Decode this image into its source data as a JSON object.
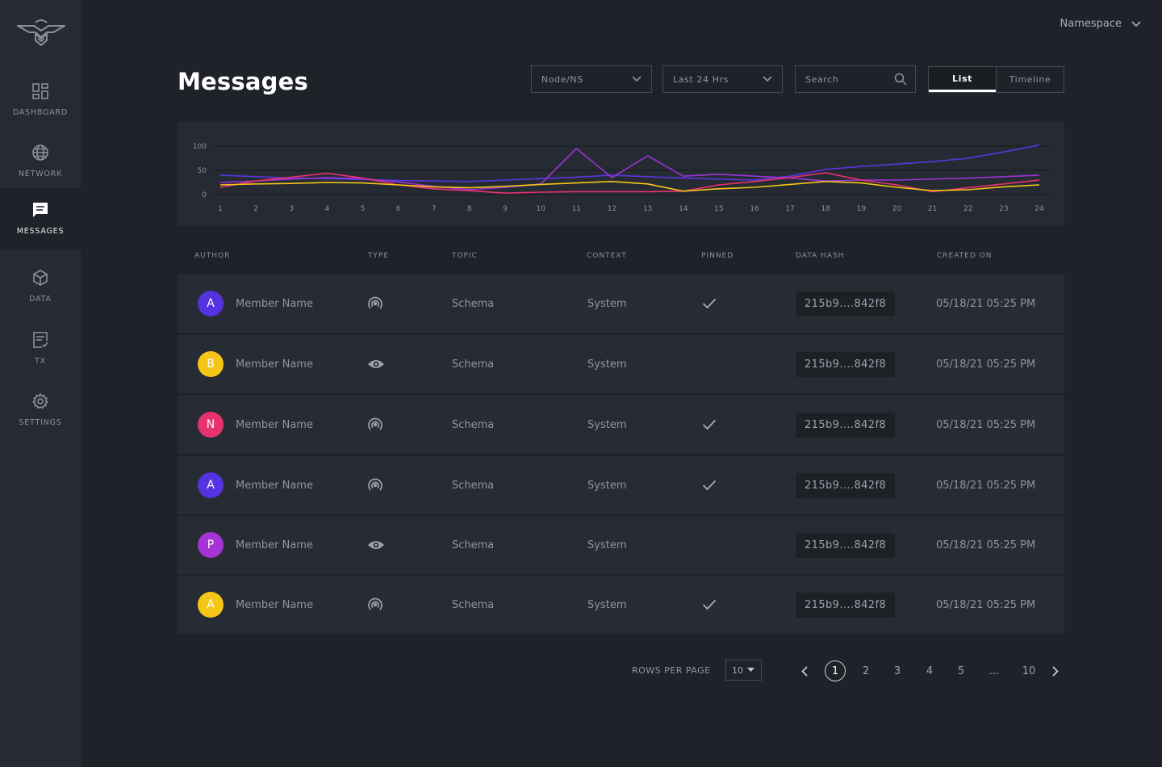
{
  "sidebar": {
    "items": [
      {
        "label": "DASHBOARD",
        "icon": "dashboard-icon",
        "active": false
      },
      {
        "label": "NETWORK",
        "icon": "globe-icon",
        "active": false
      },
      {
        "label": "MESSAGES",
        "icon": "message-icon",
        "active": true
      },
      {
        "label": "DATA",
        "icon": "cube-icon",
        "active": false
      },
      {
        "label": "TX",
        "icon": "document-check-icon",
        "active": false
      },
      {
        "label": "SETTINGS",
        "icon": "gear-icon",
        "active": false
      }
    ]
  },
  "header": {
    "namespace_label": "Namespace",
    "title": "Messages"
  },
  "filters": {
    "node_select": "Node/NS",
    "time_select": "Last 24 Hrs",
    "search_placeholder": "Search"
  },
  "view_toggle": {
    "list_label": "List",
    "timeline_label": "Timeline",
    "active": "List"
  },
  "chart_data": {
    "type": "line",
    "title": "",
    "xlabel": "",
    "ylabel": "",
    "x": [
      1,
      2,
      3,
      4,
      5,
      6,
      7,
      8,
      9,
      10,
      11,
      12,
      13,
      14,
      15,
      16,
      17,
      18,
      19,
      20,
      21,
      22,
      23,
      24
    ],
    "yticks": [
      0,
      50,
      100
    ],
    "ylim": [
      0,
      100
    ],
    "grid": true,
    "series": [
      {
        "color": "#5b35e0",
        "values": [
          40,
          37,
          34,
          33,
          31,
          29,
          28,
          27,
          30,
          33,
          36,
          40,
          37,
          34,
          32,
          30,
          38,
          52,
          58,
          63,
          68,
          75,
          88,
          102
        ]
      },
      {
        "color": "#9b33d6",
        "values": [
          25,
          28,
          32,
          35,
          33,
          26,
          17,
          10,
          15,
          22,
          95,
          35,
          80,
          38,
          42,
          38,
          34,
          28,
          30,
          30,
          32,
          34,
          37,
          40
        ]
      },
      {
        "color": "#e8326f",
        "values": [
          15,
          28,
          36,
          44,
          34,
          20,
          12,
          8,
          3,
          5,
          6,
          6,
          6,
          7,
          20,
          27,
          35,
          45,
          30,
          20,
          6,
          14,
          22,
          30
        ]
      },
      {
        "color": "#f5c518",
        "values": [
          20,
          22,
          23,
          25,
          24,
          20,
          16,
          14,
          17,
          21,
          24,
          27,
          22,
          7,
          12,
          15,
          21,
          27,
          24,
          15,
          8,
          10,
          16,
          20
        ]
      }
    ]
  },
  "table": {
    "headers": {
      "author": "AUTHOR",
      "type": "TYPE",
      "topic": "TOPIC",
      "context": "CONTEXT",
      "pinned": "PINNED",
      "hash": "DATA HASH",
      "created": "CREATED ON"
    },
    "rows": [
      {
        "initial": "A",
        "color": "#5433e0",
        "author": "Member Name",
        "type_icon": "broadcast-icon",
        "topic": "Schema",
        "context": "System",
        "pinned": true,
        "hash": "215b9....842f8",
        "created": "05/18/21 05:25 PM"
      },
      {
        "initial": "B",
        "color": "#f5c518",
        "author": "Member Name",
        "type_icon": "eye-icon",
        "topic": "Schema",
        "context": "System",
        "pinned": false,
        "hash": "215b9....842f8",
        "created": "05/18/21 05:25 PM"
      },
      {
        "initial": "N",
        "color": "#e8326f",
        "author": "Member Name",
        "type_icon": "broadcast-icon",
        "topic": "Schema",
        "context": "System",
        "pinned": true,
        "hash": "215b9....842f8",
        "created": "05/18/21 05:25 PM"
      },
      {
        "initial": "A",
        "color": "#5433e0",
        "author": "Member Name",
        "type_icon": "broadcast-icon",
        "topic": "Schema",
        "context": "System",
        "pinned": true,
        "hash": "215b9....842f8",
        "created": "05/18/21 05:25 PM"
      },
      {
        "initial": "P",
        "color": "#a633d6",
        "author": "Member Name",
        "type_icon": "eye-icon",
        "topic": "Schema",
        "context": "System",
        "pinned": false,
        "hash": "215b9....842f8",
        "created": "05/18/21 05:25 PM"
      },
      {
        "initial": "A",
        "color": "#f5c518",
        "author": "Member Name",
        "type_icon": "broadcast-icon",
        "topic": "Schema",
        "context": "System",
        "pinned": true,
        "hash": "215b9....842f8",
        "created": "05/18/21 05:25 PM"
      }
    ]
  },
  "pagination": {
    "rows_per_page_label": "ROWS PER PAGE",
    "rows_per_page_value": "10",
    "pages": [
      "1",
      "2",
      "3",
      "4",
      "5",
      "...",
      "10"
    ],
    "current": "1"
  }
}
